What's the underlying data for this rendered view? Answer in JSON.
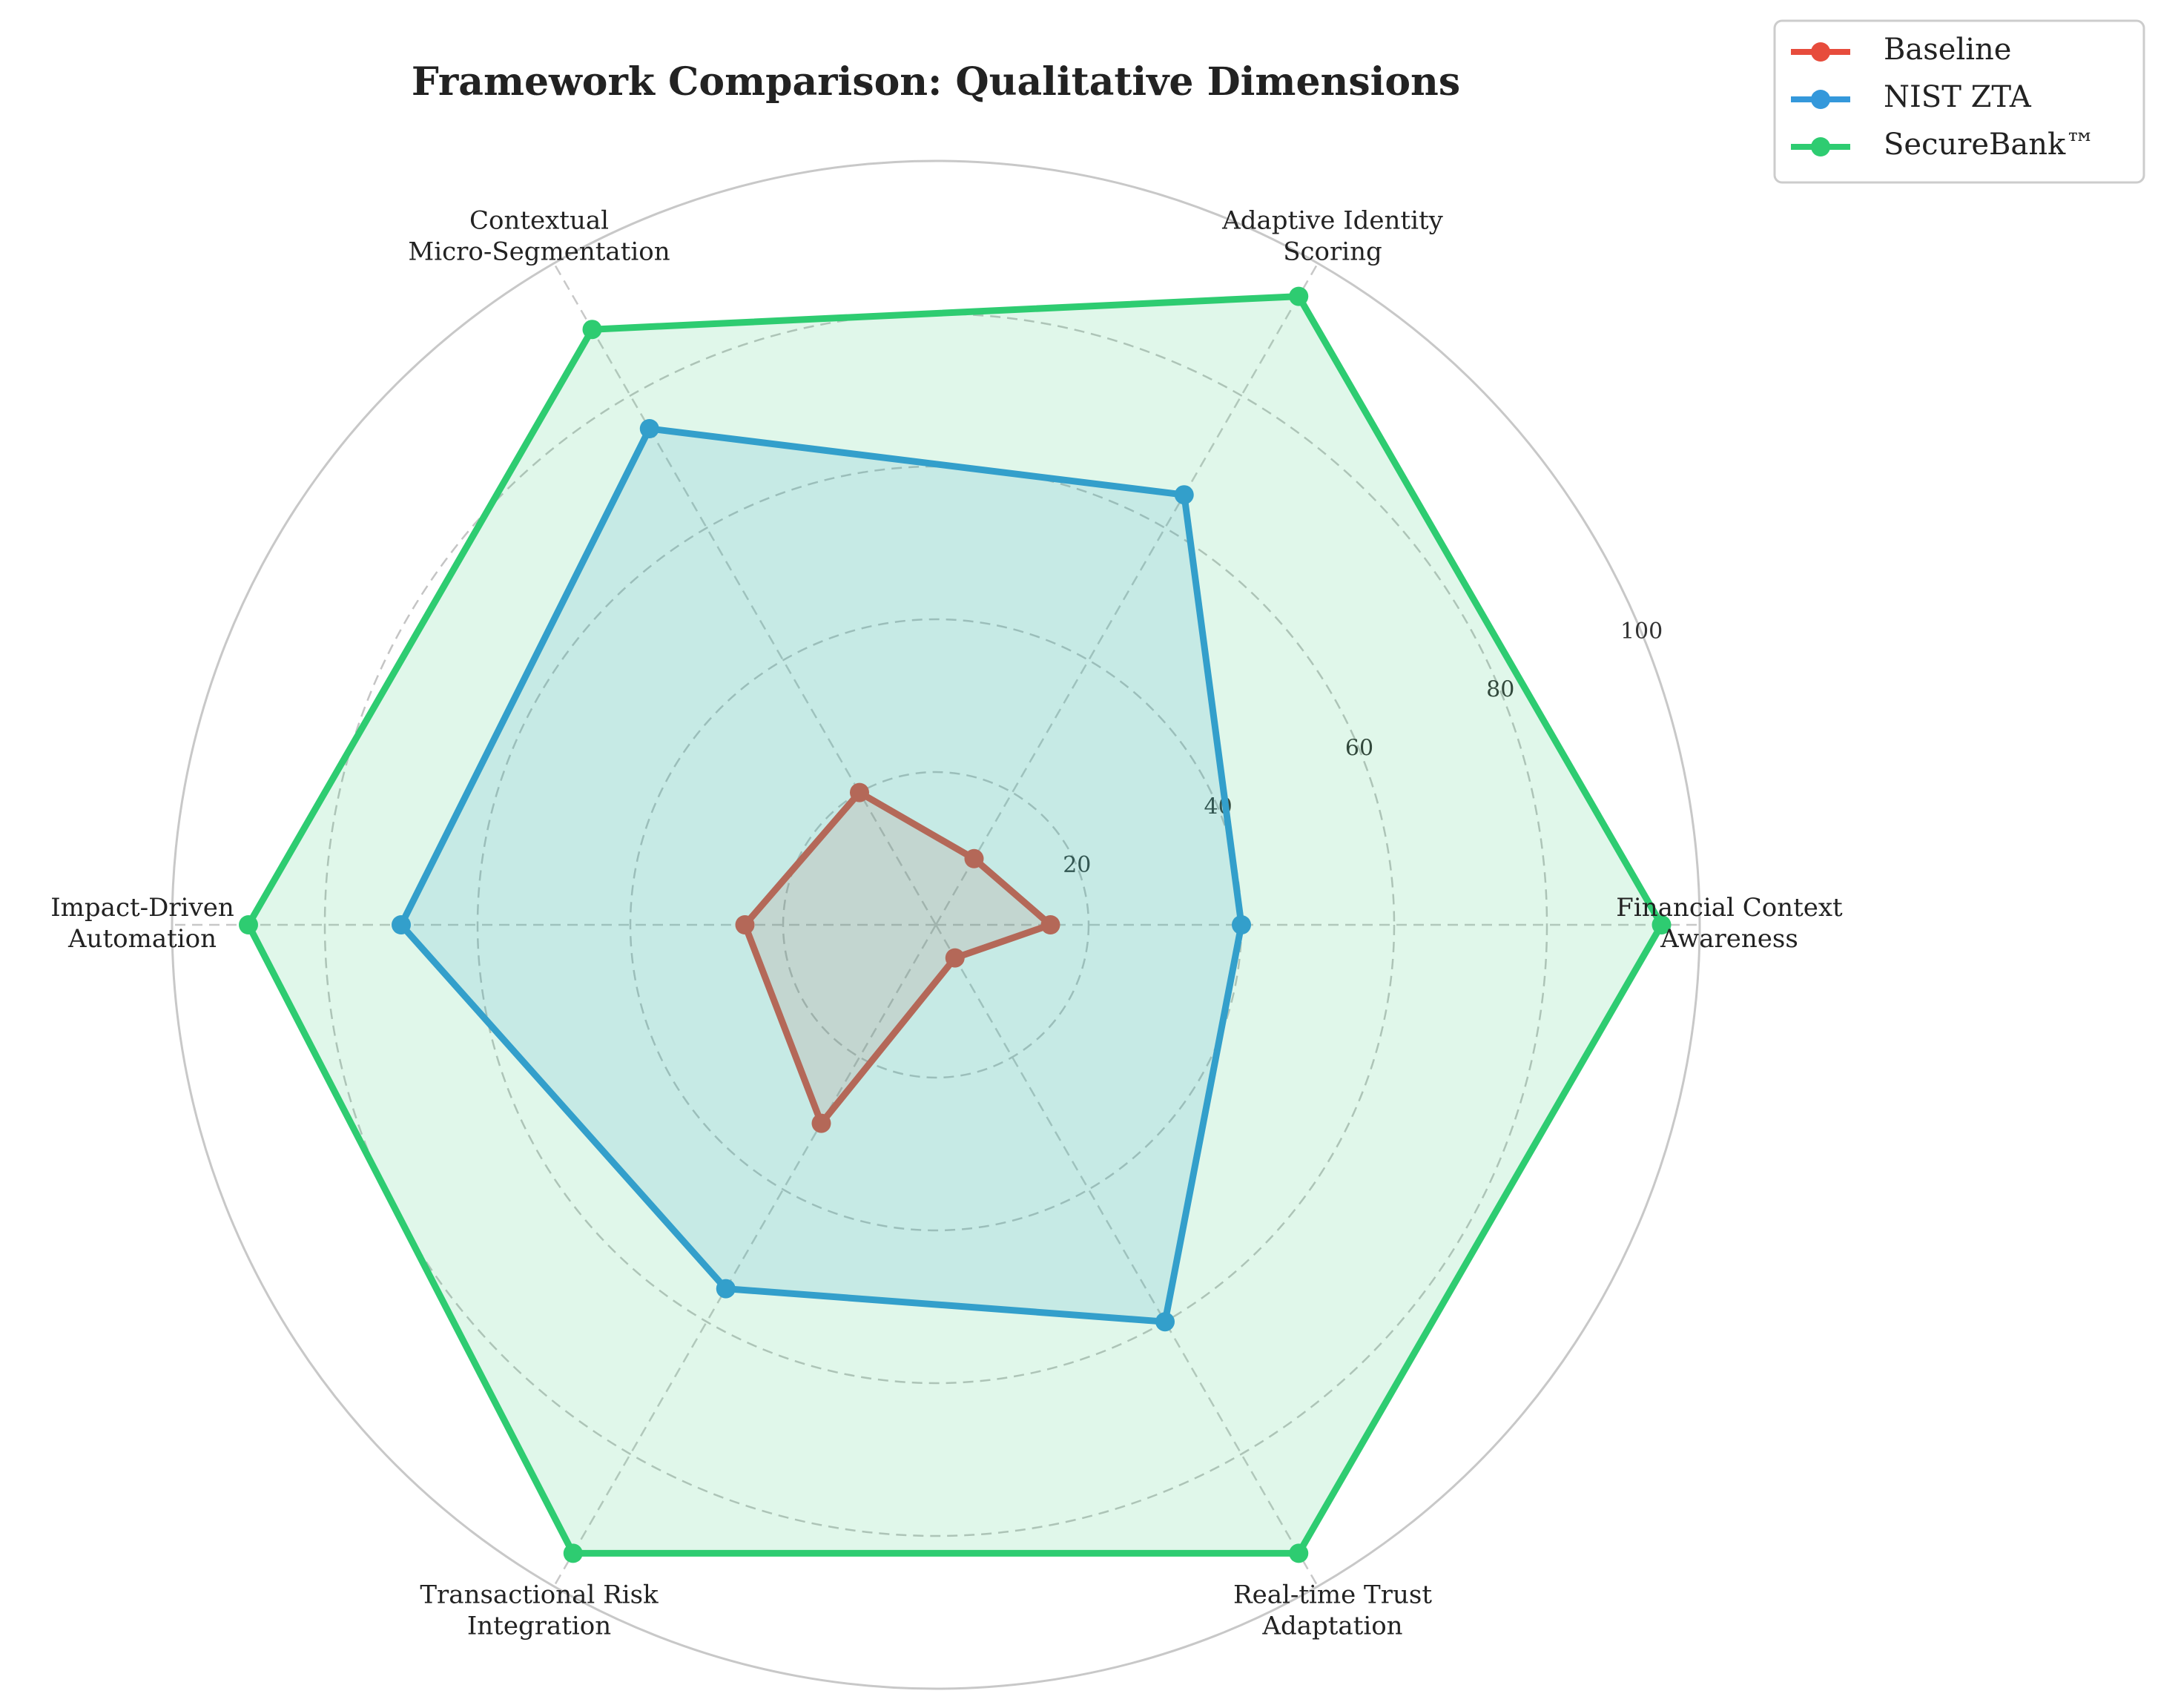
{
  "chart_data": {
    "type": "radar",
    "title": "Framework Comparison: Qualitative Dimensions",
    "categories": [
      [
        "Financial Context",
        "Awareness"
      ],
      [
        "Adaptive Identity",
        "Scoring"
      ],
      [
        "Contextual",
        "Micro-Segmentation"
      ],
      [
        "Impact-Driven",
        "Automation"
      ],
      [
        "Transactional Risk",
        "Integration"
      ],
      [
        "Real-time Trust",
        "Adaptation"
      ]
    ],
    "rlim": [
      0,
      100
    ],
    "rticks": [
      20,
      40,
      60,
      80,
      100
    ],
    "grid": true,
    "legend": "top-right",
    "series": [
      {
        "name": "Baseline",
        "color": "#e74c3c",
        "values": [
          15,
          10,
          20,
          25,
          30,
          5
        ]
      },
      {
        "name": "NIST ZTA",
        "color": "#3498db",
        "values": [
          40,
          65,
          75,
          70,
          55,
          60
        ]
      },
      {
        "name": "SecureBank™",
        "color": "#2ecc71",
        "values": [
          95,
          95,
          90,
          90,
          95,
          95
        ]
      }
    ]
  }
}
